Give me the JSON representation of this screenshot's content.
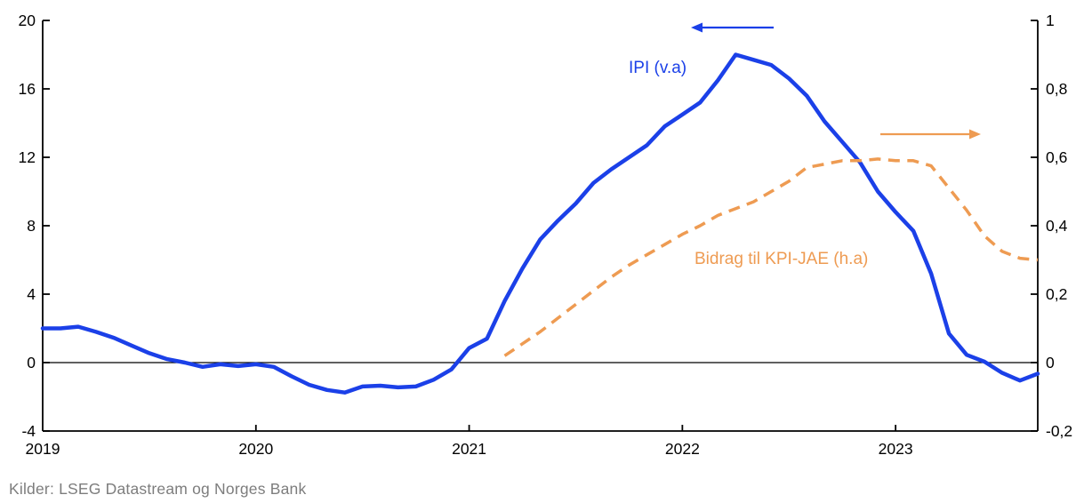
{
  "chart_data": {
    "type": "line",
    "title": "",
    "x_unit": "month",
    "x_start": "2019-01",
    "x_end": "2023-09",
    "x_tick_labels": [
      "2019",
      "2020",
      "2021",
      "2022",
      "2023"
    ],
    "left_axis": {
      "label": "IPI (v.a)",
      "min": -4,
      "max": 20,
      "ticks": [
        "20",
        "16",
        "12",
        "8",
        "4",
        "0",
        "-4"
      ],
      "tick_values": [
        20,
        16,
        12,
        8,
        4,
        0,
        -4
      ]
    },
    "right_axis": {
      "label": "Bidrag til KPI-JAE (h.a)",
      "min": -0.2,
      "max": 1,
      "ticks": [
        "1",
        "0,8",
        "0,6",
        "0,4",
        "0,2",
        "0",
        "-0,2"
      ],
      "tick_values": [
        1,
        0.8,
        0.6,
        0.4,
        0.2,
        0,
        -0.2
      ]
    },
    "grid": false,
    "zero_line": true,
    "series": [
      {
        "name": "IPI (v.a)",
        "axis": "left",
        "style": "solid",
        "color": "#1b40e8",
        "start_month_index": 0,
        "values": [
          2.0,
          2.0,
          2.1,
          1.8,
          1.45,
          1.0,
          0.55,
          0.2,
          0.0,
          -0.25,
          -0.1,
          -0.2,
          -0.1,
          -0.25,
          -0.8,
          -1.3,
          -1.6,
          -1.75,
          -1.4,
          -1.35,
          -1.45,
          -1.4,
          -1.0,
          -0.4,
          0.85,
          1.4,
          3.6,
          5.5,
          7.2,
          8.3,
          9.3,
          10.5,
          11.3,
          12.0,
          12.7,
          13.8,
          14.5,
          15.2,
          16.5,
          18.0,
          17.7,
          17.4,
          16.6,
          15.6,
          14.1,
          12.9,
          11.7,
          10.0,
          8.8,
          7.7,
          5.2,
          1.7,
          0.45,
          0.05,
          -0.6,
          -1.05,
          -0.65
        ]
      },
      {
        "name": "Bidrag til KPI-JAE (h.a)",
        "axis": "right",
        "style": "dashed",
        "color": "#ee9b52",
        "start_month_index": 26,
        "values": [
          0.02,
          0.055,
          0.09,
          0.13,
          0.17,
          0.21,
          0.25,
          0.285,
          0.315,
          0.345,
          0.375,
          0.4,
          0.43,
          0.45,
          0.47,
          0.5,
          0.53,
          0.57,
          0.58,
          0.59,
          0.59,
          0.595,
          0.59,
          0.59,
          0.575,
          0.51,
          0.445,
          0.37,
          0.325,
          0.305,
          0.3
        ]
      }
    ],
    "annotations": [
      {
        "text": "IPI (v.a)",
        "color": "#1b40e8",
        "x": 707,
        "y": 82
      },
      {
        "text": "Bidrag til KPI-JAE (h.a)",
        "color": "#ee9b52",
        "x": 781,
        "y": 297
      }
    ],
    "arrows": [
      {
        "name": "left-axis-arrow",
        "color": "#1b40e8",
        "x_tail": 870,
        "x_head": 777,
        "y": 31,
        "direction": "left"
      },
      {
        "name": "right-axis-arrow",
        "color": "#ee9b52",
        "x_tail": 990,
        "x_head": 1103,
        "y": 151,
        "direction": "right"
      }
    ]
  },
  "source": {
    "text": "Kilder: LSEG Datastream og Norges Bank"
  }
}
